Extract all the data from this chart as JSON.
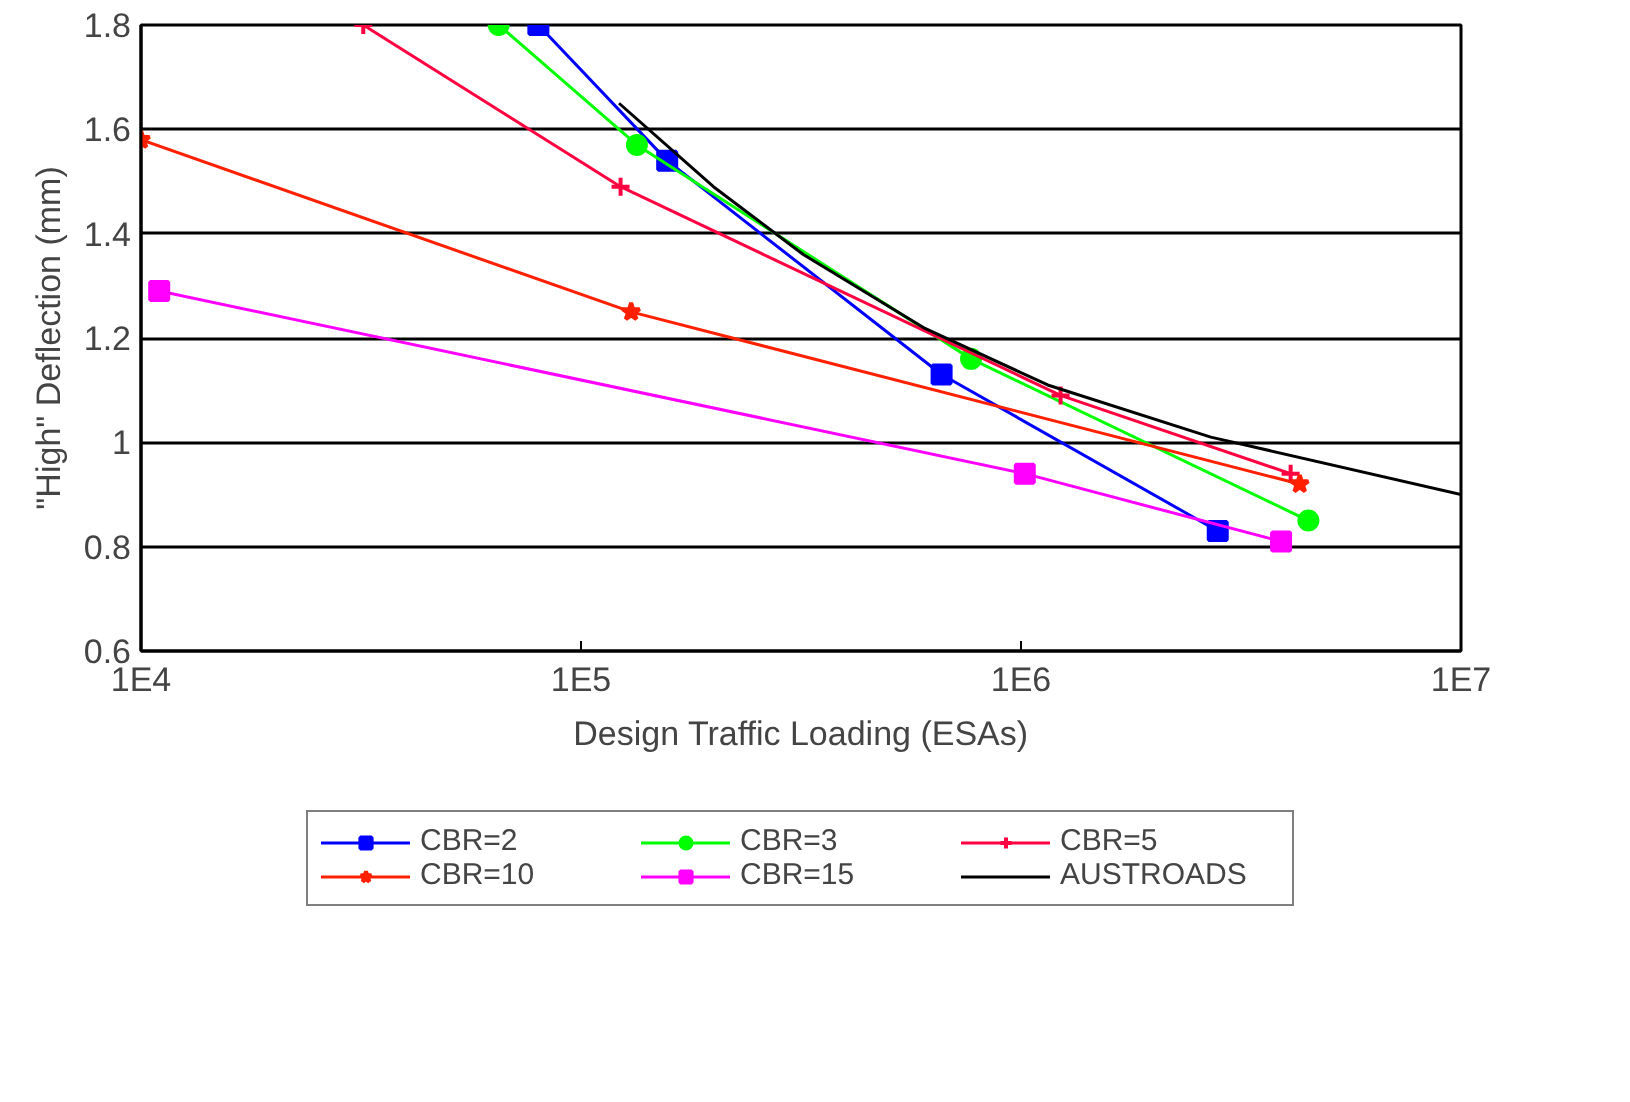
{
  "chart_data": {
    "type": "line",
    "xlabel": "Design Traffic Loading (ESAs)",
    "ylabel": "\"High\" Deflection (mm)",
    "log": "x",
    "grid": "y",
    "legend": "bottom",
    "xlim": [
      10000,
      10000000
    ],
    "xticks": [
      {
        "value": 10000,
        "label": "1E4"
      },
      {
        "value": 100000,
        "label": "1E5"
      },
      {
        "value": 1000000,
        "label": "1E6"
      },
      {
        "value": 10000000,
        "label": "1E7"
      }
    ],
    "ylim": [
      0.6,
      1.8
    ],
    "yticks": [
      0.6,
      0.8,
      1,
      1.2,
      1.4,
      1.6,
      1.8
    ],
    "series": [
      {
        "name": "CBR=2",
        "color": "#0000ff",
        "marker": "square",
        "x": [
          80000,
          157000,
          660000,
          2800000
        ],
        "values": [
          1.8,
          1.54,
          1.13,
          0.83
        ]
      },
      {
        "name": "CBR=3",
        "color": "#00ff00",
        "marker": "circle",
        "x": [
          65000,
          134000,
          770000,
          4500000
        ],
        "values": [
          1.8,
          1.57,
          1.16,
          0.85
        ]
      },
      {
        "name": "CBR=5",
        "color": "#ff0040",
        "marker": "cross",
        "x": [
          32000,
          123000,
          1230000,
          4100000
        ],
        "values": [
          1.8,
          1.49,
          1.09,
          0.94
        ]
      },
      {
        "name": "CBR=10",
        "color": "#ff2000",
        "marker": "star",
        "x": [
          10000,
          130000,
          4300000
        ],
        "values": [
          1.58,
          1.25,
          0.92
        ]
      },
      {
        "name": "CBR=15",
        "color": "#ff00ff",
        "marker": "square",
        "x": [
          11000,
          1020000,
          3900000
        ],
        "values": [
          1.29,
          0.94,
          0.81
        ]
      },
      {
        "name": "AUSTROADS",
        "color": "#000000",
        "marker": "none",
        "x": [
          122000,
          200000,
          320000,
          600000,
          1150000,
          2700000,
          10000000
        ],
        "values": [
          1.65,
          1.49,
          1.36,
          1.22,
          1.11,
          1.01,
          0.9
        ]
      }
    ]
  }
}
